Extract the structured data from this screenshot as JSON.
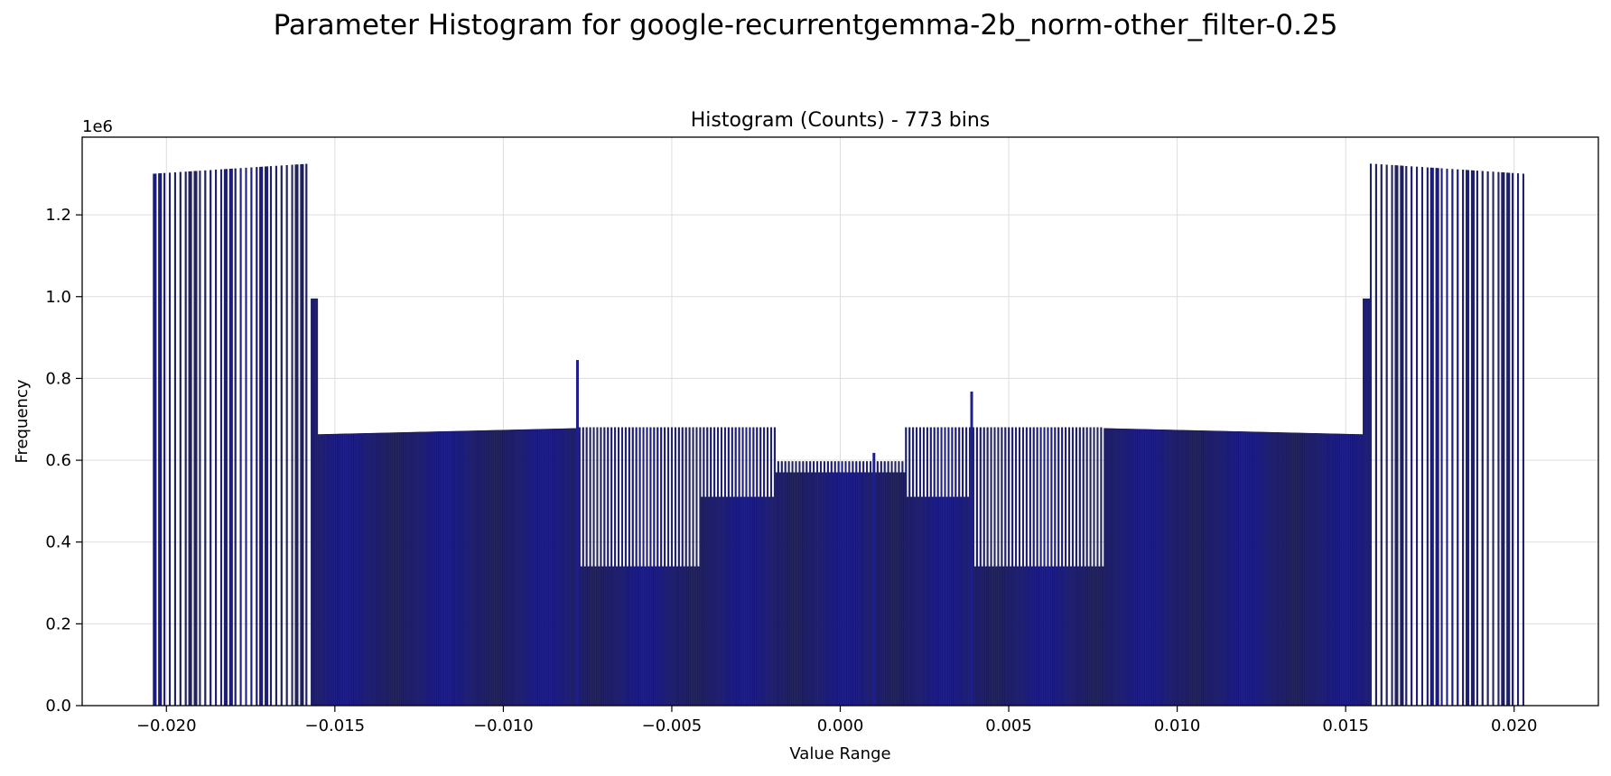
{
  "figure": {
    "suptitle": "Parameter Histogram for google-recurrentgemma-2b_norm-other_filter-0.25"
  },
  "chart_data": {
    "type": "bar",
    "title": "Histogram (Counts) - 773 bins",
    "xlabel": "Value Range",
    "ylabel": "Frequency",
    "y_offset_label": "1e6",
    "y_scale": 1000000,
    "num_bins": 773,
    "xlim": [
      -0.0225,
      0.0225
    ],
    "ylim": [
      0,
      1390000
    ],
    "x_ticks": [
      -0.02,
      -0.015,
      -0.01,
      -0.005,
      0.0,
      0.005,
      0.01,
      0.015,
      0.02
    ],
    "x_tick_labels": [
      "−0.020",
      "−0.015",
      "−0.010",
      "−0.005",
      "0.000",
      "0.005",
      "0.010",
      "0.015",
      "0.020"
    ],
    "y_ticks": [
      0,
      200000,
      400000,
      600000,
      800000,
      1000000,
      1200000
    ],
    "y_tick_labels": [
      "0.0",
      "0.2",
      "0.4",
      "0.6",
      "0.8",
      "1.0",
      "1.2"
    ],
    "grid": true,
    "bar_color": "#1f1f8a",
    "bar_edge_color": "#0a0a3a",
    "x_range": [
      -0.0204,
      0.0203
    ],
    "segments": [
      {
        "from": -0.0204,
        "to": -0.0157,
        "value_start": 1300000,
        "value_end": 1325000,
        "fill": 0.45
      },
      {
        "from": -0.0157,
        "to": -0.0155,
        "value_start": 995000,
        "value_end": 995000,
        "fill": 1.0
      },
      {
        "from": -0.0155,
        "to": -0.0078,
        "value_start": 663000,
        "value_end": 678000,
        "fill": 1.0
      },
      {
        "from": -0.0078,
        "to": -0.0042,
        "value_start": 680000,
        "value_end": 680000,
        "fill": 1.0,
        "alt_value": 340000
      },
      {
        "from": -0.0042,
        "to": -0.0019,
        "value_start": 680000,
        "value_end": 680000,
        "fill": 1.0,
        "alt_value": 510000
      },
      {
        "from": -0.0019,
        "to": 0.0019,
        "value_start": 597000,
        "value_end": 597000,
        "fill": 1.0,
        "alt_value": 570000
      },
      {
        "from": 0.0019,
        "to": 0.004,
        "value_start": 680000,
        "value_end": 680000,
        "fill": 1.0,
        "alt_value": 510000
      },
      {
        "from": 0.004,
        "to": 0.0078,
        "value_start": 680000,
        "value_end": 680000,
        "fill": 1.0,
        "alt_value": 340000
      },
      {
        "from": 0.0078,
        "to": 0.0155,
        "value_start": 678000,
        "value_end": 663000,
        "fill": 1.0
      },
      {
        "from": 0.0155,
        "to": 0.0157,
        "value_start": 995000,
        "value_end": 995000,
        "fill": 1.0
      },
      {
        "from": 0.0157,
        "to": 0.0203,
        "value_start": 1325000,
        "value_end": 1300000,
        "fill": 0.45
      }
    ],
    "spikes": [
      {
        "x": -0.0078,
        "value": 845000
      },
      {
        "x": 0.0039,
        "value": 768000
      },
      {
        "x": 0.001,
        "value": 618000
      }
    ]
  }
}
